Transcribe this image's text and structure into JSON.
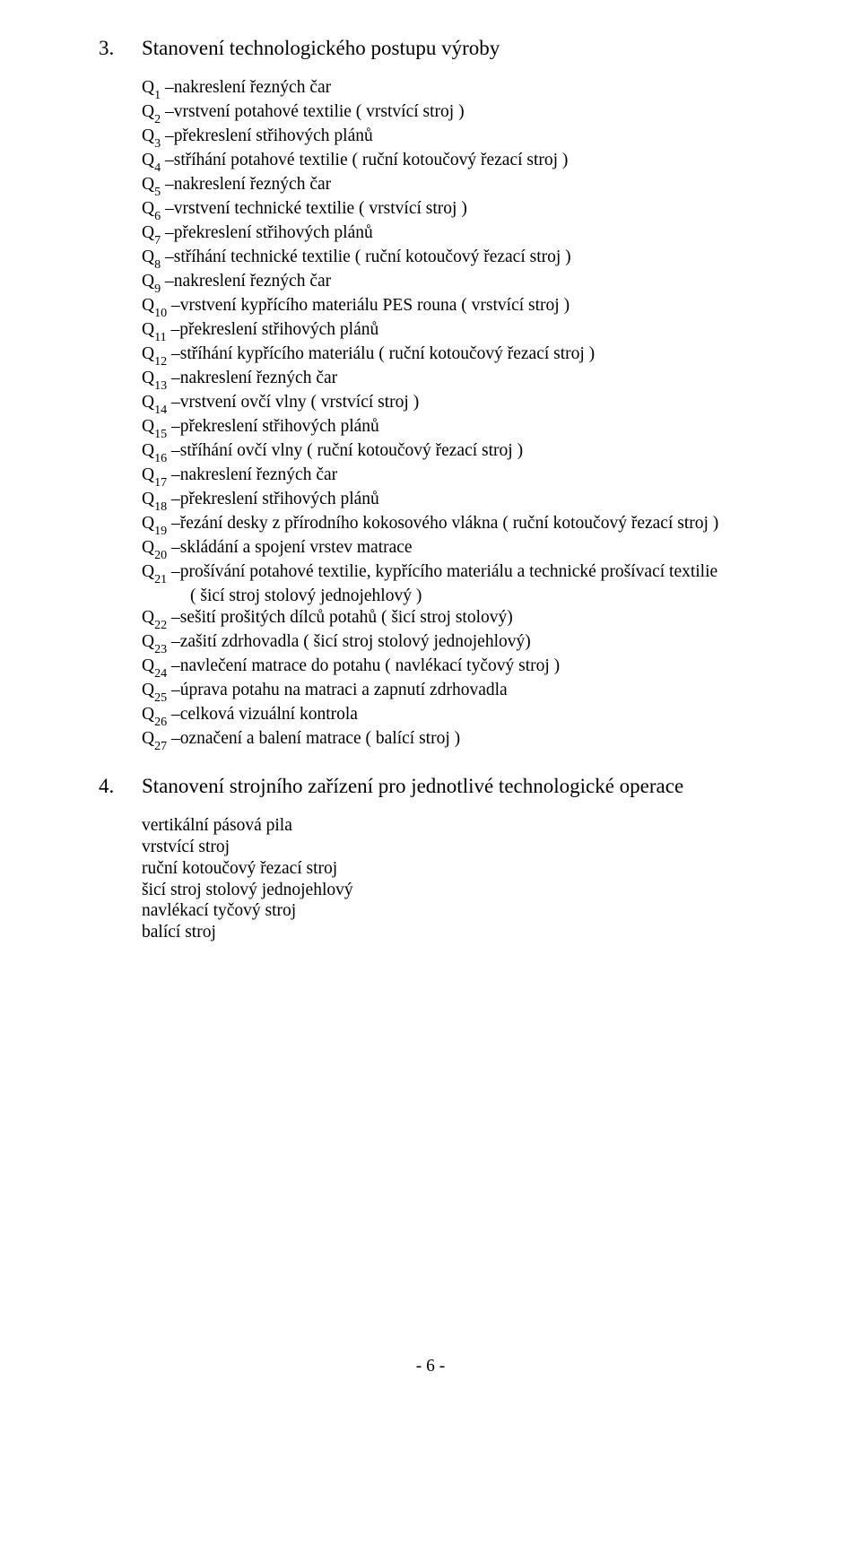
{
  "section3": {
    "num": "3.",
    "title": "Stanovení technologického postupu výroby",
    "ops": [
      {
        "n": "1",
        "text": "nakreslení řezných čar"
      },
      {
        "n": "2",
        "text": "vrstvení potahové textilie ( vrstvící stroj )"
      },
      {
        "n": "3",
        "text": "překreslení střihových plánů"
      },
      {
        "n": "4",
        "text": "stříhání potahové textilie ( ruční kotoučový řezací stroj )"
      },
      {
        "n": "5",
        "text": "nakreslení řezných čar"
      },
      {
        "n": "6",
        "text": "vrstvení technické textilie ( vrstvící stroj )"
      },
      {
        "n": "7",
        "text": "překreslení střihových plánů"
      },
      {
        "n": "8",
        "text": "stříhání technické textilie ( ruční kotoučový řezací stroj )"
      },
      {
        "n": "9",
        "text": "nakreslení řezných čar"
      },
      {
        "n": "10",
        "text": "vrstvení kypřícího materiálu PES rouna ( vrstvící stroj )"
      },
      {
        "n": "11",
        "text": "překreslení střihových plánů"
      },
      {
        "n": "12",
        "text": "stříhání kypřícího materiálu ( ruční kotoučový řezací stroj )"
      },
      {
        "n": "13",
        "text": "nakreslení řezných čar"
      },
      {
        "n": "14",
        "text": "vrstvení ovčí vlny ( vrstvící stroj )"
      },
      {
        "n": "15",
        "text": "překreslení střihových plánů"
      },
      {
        "n": "16",
        "text": "stříhání ovčí vlny ( ruční kotoučový řezací stroj )"
      },
      {
        "n": "17",
        "text": "nakreslení řezných čar"
      },
      {
        "n": "18",
        "text": "překreslení střihových plánů"
      },
      {
        "n": "19",
        "text": "řezání desky z přírodního kokosového vlákna ( ruční kotoučový řezací stroj )"
      },
      {
        "n": "20",
        "text": "skládání a spojení vrstev matrace"
      },
      {
        "n": "21",
        "text": "prošívání potahové textilie, kypřícího materiálu a technické prošívací textilie",
        "cont": "( šicí stroj stolový jednojehlový )"
      },
      {
        "n": "22",
        "text": "sešití prošitých dílců potahů ( šicí stroj stolový)"
      },
      {
        "n": "23",
        "text": "zašití zdrhovadla ( šicí stroj stolový jednojehlový)"
      },
      {
        "n": "24",
        "text": "navlečení matrace do potahu ( navlékací tyčový stroj )"
      },
      {
        "n": "25",
        "text": "úprava potahu na matraci a zapnutí zdrhovadla"
      },
      {
        "n": "26",
        "text": "celková vizuální kontrola"
      },
      {
        "n": "27",
        "text": "označení a balení matrace ( balící stroj )"
      }
    ]
  },
  "section4": {
    "num": "4.",
    "title": "Stanovení strojního zařízení pro jednotlivé technologické operace",
    "equip": [
      "vertikální pásová pila",
      "vrstvící stroj",
      "ruční kotoučový řezací stroj",
      "šicí stroj stolový jednojehlový",
      "navlékací tyčový stroj",
      "balící stroj"
    ]
  },
  "pageNumber": "- 6 -",
  "dash": " – "
}
